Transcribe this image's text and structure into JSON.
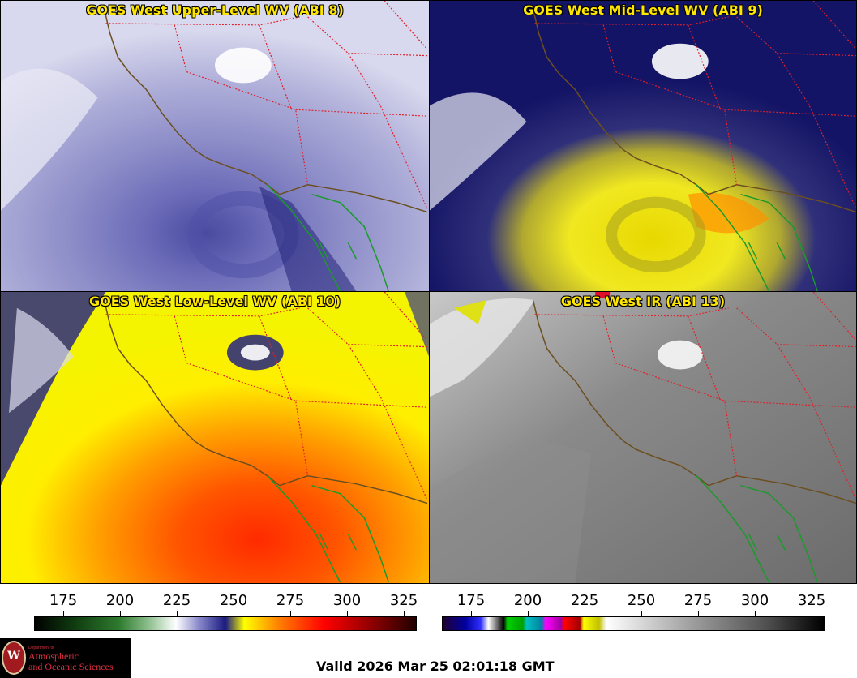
{
  "panels": [
    {
      "id": "upper",
      "title": "GOES West Upper-Level WV (ABI 8)"
    },
    {
      "id": "mid",
      "title": "GOES West Mid-Level WV (ABI 9)"
    },
    {
      "id": "low",
      "title": "GOES West Low-Level WV (ABI 10)"
    },
    {
      "id": "ir",
      "title": "GOES West IR (ABI 13)"
    }
  ],
  "colorbars": {
    "left": {
      "ticks": [
        "175",
        "200",
        "225",
        "250",
        "275",
        "300",
        "325"
      ]
    },
    "right": {
      "ticks": [
        "175",
        "200",
        "225",
        "250",
        "275",
        "300",
        "325"
      ]
    }
  },
  "logo": {
    "seal_letter": "W",
    "department": "Department of",
    "line1": "Atmospheric",
    "line2": "and Oceanic Sciences"
  },
  "footer": {
    "valid": "Valid 2026 Mar 25 02:01:18 GMT"
  },
  "colors": {
    "title": "#ffe600",
    "coast": "#6b4f1f",
    "borders": "#e0202a",
    "mexico_coast": "#1a9a2a"
  }
}
